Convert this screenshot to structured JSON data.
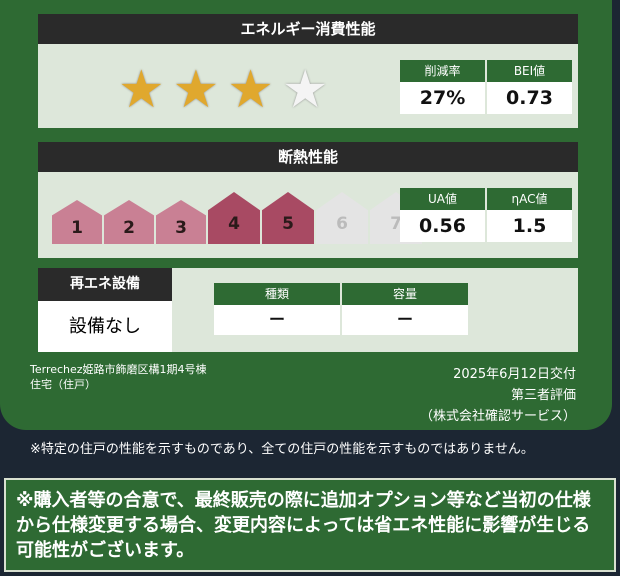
{
  "energy": {
    "title": "エネルギー消費性能",
    "stars_total": 4,
    "stars_filled": 3,
    "headers": [
      "削減率",
      "BEI値"
    ],
    "values": [
      "27%",
      "0.73"
    ]
  },
  "insulation": {
    "title": "断熱性能",
    "levels": [
      "1",
      "2",
      "3",
      "4",
      "5",
      "6",
      "7"
    ],
    "level": 5,
    "headers": [
      "UA値",
      "ηAC値"
    ],
    "values": [
      "0.56",
      "1.5"
    ]
  },
  "renewable": {
    "title": "再エネ設備",
    "value": "設備なし",
    "headers": [
      "種類",
      "容量"
    ],
    "values": [
      "ー",
      "ー"
    ]
  },
  "property": {
    "name": "Terrechez姫路市飾磨区構1期4号棟",
    "type": "住宅（住戸）"
  },
  "issuer": {
    "date": "2025年6月12日交付",
    "evaluation": "第三者評価",
    "company": "（株式会社確認サービス）"
  },
  "disclaimer": "※特定の住戸の性能を示すものであり、全ての住戸の性能を示すものではありません。",
  "notice": "※購入者等の合意で、最終販売の際に追加オプション等など当初の仕様から仕様変更する場合、変更内容によっては省エネ性能に影響が生じる可能性がございます。",
  "colors": {
    "green": "#2e6a33",
    "star": "#e0a82e",
    "house_active": "#b35a72",
    "background": "#1c2633"
  }
}
